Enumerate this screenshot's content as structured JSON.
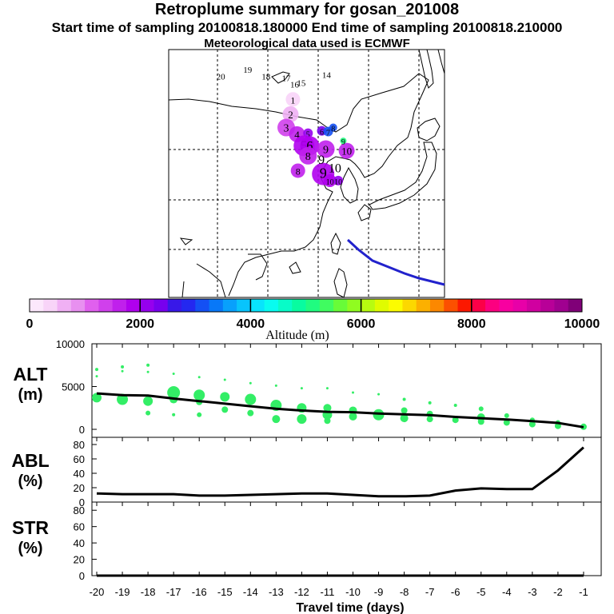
{
  "header": {
    "title": "Retroplume summary for gosan_201008",
    "line2": "Start time of sampling 20100818.180000     End time of sampling 20100818.210000",
    "line3": "Meteorological data used is ECMWF"
  },
  "colors": {
    "curve": "#000000",
    "points": "#33ee66",
    "track": "#2222cc"
  },
  "map": {
    "day_labels": [
      {
        "label": "20",
        "lon": 105.5,
        "lat": 46
      },
      {
        "label": "19",
        "lon": 113.5,
        "lat": 48
      },
      {
        "label": "18",
        "lon": 119,
        "lat": 46
      },
      {
        "label": "17",
        "lon": 125,
        "lat": 45.5
      },
      {
        "label": "16",
        "lon": 127.5,
        "lat": 43.5
      },
      {
        "label": "15",
        "lon": 129.5,
        "lat": 44
      },
      {
        "label": "14",
        "lon": 137,
        "lat": 46.5
      }
    ],
    "plume": [
      {
        "label": "1",
        "lon": 127,
        "lat": 40,
        "alt": 450,
        "r": 9
      },
      {
        "label": "2",
        "lon": 126.3,
        "lat": 35.5,
        "alt": 550,
        "r": 10
      },
      {
        "label": "3",
        "lon": 125,
        "lat": 31.5,
        "alt": 1400,
        "r": 11
      },
      {
        "label": "4",
        "lon": 128.2,
        "lat": 29.5,
        "alt": 1600,
        "r": 10
      },
      {
        "label": "5",
        "lon": 131.5,
        "lat": 29.8,
        "alt": 2050,
        "r": 6
      },
      {
        "label": "6",
        "lon": 135.6,
        "lat": 30.5,
        "alt": 2400,
        "r": 6
      },
      {
        "label": "7",
        "lon": 137.5,
        "lat": 30.3,
        "alt": 3000,
        "r": 6
      },
      {
        "label": "8",
        "lon": 139,
        "lat": 31.5,
        "alt": 3200,
        "r": 5
      },
      {
        "label": "5",
        "lon": 130.3,
        "lat": 26,
        "alt": 1800,
        "r": 13
      },
      {
        "label": "6",
        "lon": 132,
        "lat": 26,
        "alt": 1900,
        "r": 12
      },
      {
        "label": "8",
        "lon": 131.5,
        "lat": 23,
        "alt": 1700,
        "r": 11
      },
      {
        "label": "9",
        "lon": 136.8,
        "lat": 25,
        "alt": 1650,
        "r": 11
      },
      {
        "label": "10",
        "lon": 143,
        "lat": 24.5,
        "alt": 1600,
        "r": 10
      },
      {
        "label": "8",
        "lon": 128.5,
        "lat": 18.5,
        "alt": 1700,
        "r": 9
      },
      {
        "label": "9",
        "lon": 136,
        "lat": 17.5,
        "alt": 1800,
        "r": 14
      },
      {
        "label": "10",
        "lon": 138,
        "lat": 15.5,
        "alt": 1900,
        "r": 8
      },
      {
        "label": "10",
        "lon": 140.5,
        "lat": 15.5,
        "alt": 2000,
        "r": 6
      },
      {
        "label": "9",
        "lon": 142,
        "lat": 27.5,
        "alt": 5200,
        "r": 4
      }
    ],
    "track_labels": [
      {
        "label": "9",
        "lon": 135.5,
        "lat": 20.5
      },
      {
        "label": "10",
        "lon": 139.5,
        "lat": 18
      }
    ]
  },
  "colorbar": {
    "ticks": [
      "0",
      "2000",
      "4000",
      "6000",
      "8000",
      "10000"
    ],
    "xlabel": "Altitude (m)",
    "palette": [
      "#fce8fc",
      "#f8d4f8",
      "#f0b0f4",
      "#e890f0",
      "#e060ee",
      "#d040ec",
      "#c020ec",
      "#b000ee",
      "#9600ee",
      "#7800ee",
      "#3818e8",
      "#2428f0",
      "#1450f4",
      "#0878f8",
      "#08a0fc",
      "#08c4fc",
      "#08e4fc",
      "#08fcf0",
      "#08fcc8",
      "#08fca0",
      "#20fc80",
      "#40fc60",
      "#68fc38",
      "#90fc20",
      "#b8fc10",
      "#e0fc00",
      "#fcfc00",
      "#fcd800",
      "#fcb000",
      "#fc8800",
      "#fc5000",
      "#fc1800",
      "#fc0048",
      "#fc0080",
      "#f800a0",
      "#e800a8",
      "#d000a0",
      "#b80098",
      "#a00090",
      "#800078"
    ]
  },
  "chart_data": [
    {
      "type": "scatter",
      "title": "ALT",
      "ylabel": "(m)",
      "ylim": [
        0,
        10000
      ],
      "yticks": [
        "0",
        "5000",
        "10000"
      ],
      "x": [
        -20,
        -19,
        -18,
        -17,
        -16,
        -15,
        -14,
        -13,
        -12,
        -11,
        -10,
        -9,
        -8,
        -7,
        -6,
        -5,
        -4,
        -3,
        -2,
        -1
      ],
      "mean_altitude": [
        4200,
        4000,
        3950,
        3600,
        3300,
        3000,
        2700,
        2400,
        2200,
        2050,
        2000,
        1850,
        1750,
        1650,
        1450,
        1300,
        1150,
        950,
        750,
        250
      ],
      "points": [
        {
          "x": -20,
          "y": 7000,
          "s": 2
        },
        {
          "x": -20,
          "y": 6200,
          "s": 1.5
        },
        {
          "x": -20,
          "y": 3700,
          "s": 6
        },
        {
          "x": -19,
          "y": 7300,
          "s": 2
        },
        {
          "x": -19,
          "y": 6800,
          "s": 1.5
        },
        {
          "x": -19,
          "y": 3500,
          "s": 7
        },
        {
          "x": -18,
          "y": 7500,
          "s": 2
        },
        {
          "x": -18,
          "y": 6700,
          "s": 1.5
        },
        {
          "x": -18,
          "y": 3300,
          "s": 6
        },
        {
          "x": -18,
          "y": 1900,
          "s": 3
        },
        {
          "x": -17,
          "y": 6500,
          "s": 1.5
        },
        {
          "x": -17,
          "y": 4300,
          "s": 8
        },
        {
          "x": -17,
          "y": 3500,
          "s": 5
        },
        {
          "x": -17,
          "y": 1700,
          "s": 2
        },
        {
          "x": -16,
          "y": 6100,
          "s": 1.5
        },
        {
          "x": -16,
          "y": 4000,
          "s": 7
        },
        {
          "x": -16,
          "y": 3200,
          "s": 4
        },
        {
          "x": -16,
          "y": 1700,
          "s": 3
        },
        {
          "x": -15,
          "y": 5800,
          "s": 1.5
        },
        {
          "x": -15,
          "y": 3800,
          "s": 6
        },
        {
          "x": -15,
          "y": 2300,
          "s": 4
        },
        {
          "x": -14,
          "y": 5400,
          "s": 1.5
        },
        {
          "x": -14,
          "y": 3500,
          "s": 7
        },
        {
          "x": -14,
          "y": 1900,
          "s": 4
        },
        {
          "x": -13,
          "y": 5100,
          "s": 1.5
        },
        {
          "x": -13,
          "y": 2800,
          "s": 7
        },
        {
          "x": -13,
          "y": 1200,
          "s": 5
        },
        {
          "x": -12,
          "y": 4800,
          "s": 1.5
        },
        {
          "x": -12,
          "y": 2500,
          "s": 6
        },
        {
          "x": -12,
          "y": 1200,
          "s": 6
        },
        {
          "x": -11,
          "y": 4800,
          "s": 1.5
        },
        {
          "x": -11,
          "y": 2500,
          "s": 5
        },
        {
          "x": -11,
          "y": 1700,
          "s": 6
        },
        {
          "x": -11,
          "y": 1000,
          "s": 4
        },
        {
          "x": -10,
          "y": 4300,
          "s": 1.5
        },
        {
          "x": -10,
          "y": 2200,
          "s": 5
        },
        {
          "x": -10,
          "y": 1500,
          "s": 5
        },
        {
          "x": -9,
          "y": 4100,
          "s": 1.5
        },
        {
          "x": -9,
          "y": 1700,
          "s": 7
        },
        {
          "x": -8,
          "y": 3500,
          "s": 2
        },
        {
          "x": -8,
          "y": 2200,
          "s": 4
        },
        {
          "x": -8,
          "y": 1300,
          "s": 5
        },
        {
          "x": -7,
          "y": 3100,
          "s": 2
        },
        {
          "x": -7,
          "y": 1800,
          "s": 4
        },
        {
          "x": -7,
          "y": 1200,
          "s": 4
        },
        {
          "x": -6,
          "y": 2800,
          "s": 2
        },
        {
          "x": -6,
          "y": 1100,
          "s": 4
        },
        {
          "x": -5,
          "y": 2400,
          "s": 3
        },
        {
          "x": -5,
          "y": 1400,
          "s": 5
        },
        {
          "x": -5,
          "y": 900,
          "s": 4
        },
        {
          "x": -4,
          "y": 1600,
          "s": 3
        },
        {
          "x": -4,
          "y": 800,
          "s": 4
        },
        {
          "x": -3,
          "y": 1100,
          "s": 3
        },
        {
          "x": -3,
          "y": 600,
          "s": 4
        },
        {
          "x": -2,
          "y": 800,
          "s": 3
        },
        {
          "x": -2,
          "y": 400,
          "s": 4
        },
        {
          "x": -1,
          "y": 300,
          "s": 4
        }
      ]
    },
    {
      "type": "line",
      "title": "ABL",
      "ylabel": "(%)",
      "ylim": [
        0,
        90
      ],
      "yticks": [
        "0",
        "20",
        "40",
        "60",
        "80"
      ],
      "x": [
        -20,
        -19,
        -18,
        -17,
        -16,
        -15,
        -14,
        -13,
        -12,
        -11,
        -10,
        -9,
        -8,
        -7,
        -6,
        -5,
        -4,
        -3,
        -2,
        -1
      ],
      "values": [
        12,
        11,
        11,
        11,
        9,
        9,
        10,
        11,
        12,
        12,
        10,
        8,
        8,
        9,
        16,
        19,
        18,
        18,
        44,
        76
      ]
    },
    {
      "type": "line",
      "title": "STR",
      "ylabel": "(%)",
      "ylim": [
        0,
        90
      ],
      "yticks": [
        "0",
        "20",
        "40",
        "60",
        "80"
      ],
      "x": [
        -20,
        -19,
        -18,
        -17,
        -16,
        -15,
        -14,
        -13,
        -12,
        -11,
        -10,
        -9,
        -8,
        -7,
        -6,
        -5,
        -4,
        -3,
        -2,
        -1
      ],
      "values": [
        0,
        0,
        0,
        0,
        0,
        0,
        0,
        0,
        0,
        0,
        0,
        0,
        0,
        0,
        0,
        0,
        0,
        0,
        0,
        0
      ],
      "xlabel": "Travel time (days)",
      "xticks": [
        "-20",
        "-19",
        "-18",
        "-17",
        "-16",
        "-15",
        "-14",
        "-13",
        "-12",
        "-11",
        "-10",
        "-9",
        "-8",
        "-7",
        "-6",
        "-5",
        "-4",
        "-3",
        "-2",
        "-1"
      ]
    }
  ]
}
